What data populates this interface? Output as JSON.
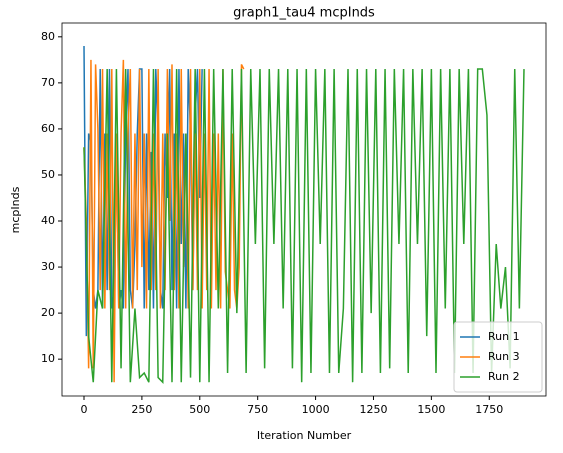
{
  "chart_data": {
    "type": "line",
    "title": "graph1_tau4 mcpInds",
    "xlabel": "Iteration Number",
    "ylabel": "mcpInds",
    "xlim": [
      -95,
      1995
    ],
    "ylim": [
      2,
      83
    ],
    "xticks": [
      0,
      250,
      500,
      750,
      1000,
      1250,
      1500,
      1750
    ],
    "yticks": [
      10,
      20,
      30,
      40,
      50,
      60,
      70,
      80
    ],
    "legend": "lower right",
    "series": [
      {
        "name": "Run 1",
        "color": "#1f77b4",
        "x": [
          0,
          10,
          20,
          30,
          40,
          50,
          60,
          70,
          80,
          90,
          100,
          110,
          120,
          130,
          140,
          150,
          160,
          170,
          180,
          190,
          200,
          210,
          220,
          230,
          240,
          250,
          260,
          270,
          280,
          290,
          300,
          310,
          320,
          330,
          340,
          350,
          360,
          370,
          380,
          390,
          400,
          410,
          420,
          430,
          440,
          450,
          460,
          470,
          480,
          490,
          500,
          510
        ],
        "values": [
          78,
          15,
          59,
          57,
          25,
          21,
          25,
          73,
          21,
          59,
          25,
          73,
          21,
          25,
          59,
          21,
          25,
          21,
          59,
          73,
          25,
          21,
          35,
          59,
          73,
          73,
          21,
          59,
          25,
          55,
          21,
          73,
          59,
          25,
          21,
          59,
          45,
          73,
          25,
          59,
          21,
          73,
          35,
          59,
          21,
          73,
          59,
          25,
          63,
          73,
          45,
          73
        ]
      },
      {
        "name": "Run 3",
        "color": "#ff7f0e",
        "x": [
          0,
          10,
          20,
          30,
          40,
          50,
          60,
          70,
          80,
          90,
          100,
          110,
          120,
          130,
          140,
          150,
          160,
          170,
          180,
          190,
          200,
          210,
          220,
          230,
          240,
          250,
          260,
          270,
          280,
          290,
          300,
          310,
          320,
          330,
          340,
          350,
          360,
          370,
          380,
          390,
          400,
          410,
          420,
          430,
          440,
          450,
          460,
          470,
          480,
          490,
          500,
          510,
          520,
          530,
          540,
          550,
          560,
          570,
          580,
          590,
          600,
          610,
          620,
          630,
          640,
          650,
          660,
          670,
          680,
          690
        ],
        "values": [
          56,
          40,
          8,
          75,
          8,
          74,
          60,
          25,
          73,
          21,
          59,
          25,
          73,
          5,
          59,
          21,
          59,
          75,
          21,
          59,
          73,
          21,
          59,
          25,
          73,
          30,
          59,
          21,
          73,
          25,
          59,
          25,
          73,
          21,
          59,
          25,
          73,
          40,
          74,
          25,
          59,
          21,
          73,
          30,
          59,
          21,
          73,
          25,
          59,
          25,
          73,
          21,
          59,
          25,
          73,
          21,
          59,
          25,
          59,
          21,
          73,
          29,
          25,
          21,
          59,
          25,
          21,
          30,
          74,
          73
        ]
      },
      {
        "name": "Run 2",
        "color": "#2ca02c",
        "x": [
          0,
          20,
          40,
          60,
          80,
          100,
          120,
          140,
          160,
          180,
          200,
          220,
          240,
          260,
          280,
          300,
          320,
          340,
          360,
          380,
          400,
          420,
          440,
          460,
          480,
          500,
          520,
          540,
          560,
          580,
          600,
          620,
          640,
          660,
          680,
          700,
          720,
          740,
          760,
          780,
          800,
          820,
          840,
          860,
          880,
          900,
          920,
          940,
          960,
          980,
          1000,
          1020,
          1040,
          1060,
          1080,
          1100,
          1120,
          1140,
          1160,
          1180,
          1200,
          1220,
          1240,
          1260,
          1280,
          1300,
          1320,
          1340,
          1360,
          1380,
          1400,
          1420,
          1440,
          1460,
          1480,
          1500,
          1520,
          1540,
          1560,
          1580,
          1600,
          1620,
          1640,
          1660,
          1680,
          1700,
          1720,
          1740,
          1760,
          1780,
          1800,
          1820,
          1840,
          1860,
          1880,
          1900
        ],
        "values": [
          56,
          15,
          5,
          25,
          21,
          73,
          5,
          73,
          8,
          73,
          5,
          21,
          6,
          7,
          5,
          73,
          6,
          5,
          59,
          5,
          73,
          5,
          59,
          6,
          73,
          5,
          73,
          5,
          73,
          21,
          73,
          7,
          73,
          20,
          73,
          7,
          73,
          35,
          73,
          8,
          73,
          35,
          73,
          21,
          73,
          8,
          73,
          5,
          73,
          7,
          73,
          35,
          73,
          7,
          73,
          7,
          21,
          73,
          5,
          73,
          7,
          73,
          20,
          73,
          7,
          73,
          8,
          73,
          35,
          73,
          7,
          73,
          35,
          73,
          15,
          73,
          7,
          73,
          21,
          73,
          7,
          73,
          35,
          73,
          7,
          73,
          73,
          63,
          7,
          35,
          21,
          30,
          8,
          73,
          21,
          73
        ]
      }
    ]
  }
}
